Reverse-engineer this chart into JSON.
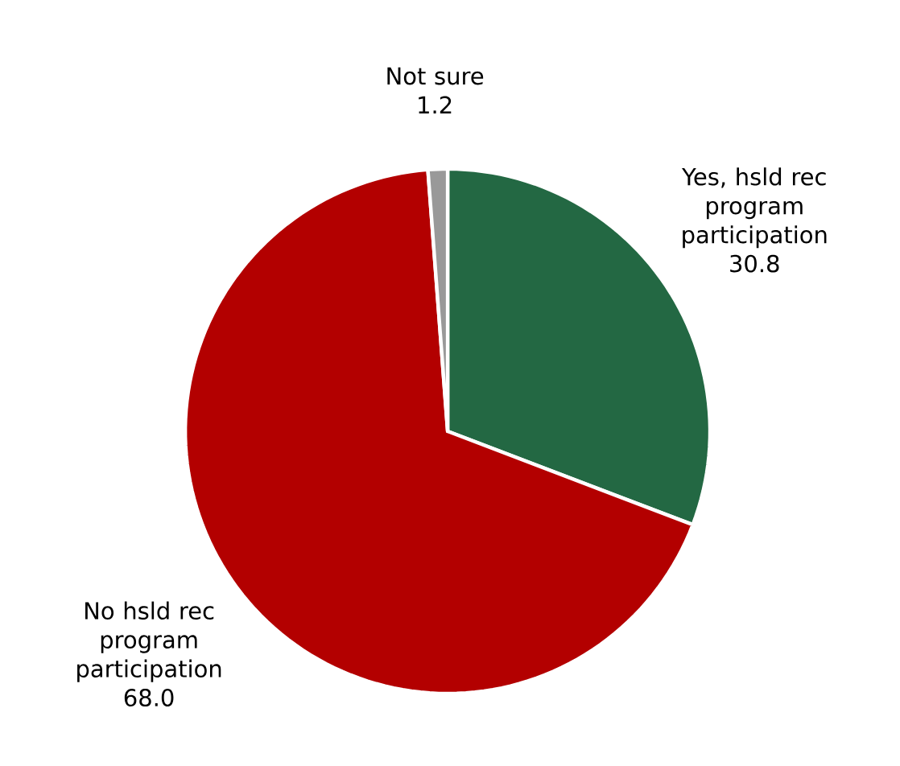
{
  "chart_data": {
    "type": "pie",
    "categories": [
      "Yes, hsld rec program participation",
      "No hsld rec program participation",
      "Not sure"
    ],
    "values": [
      30.8,
      68.0,
      1.2
    ],
    "colors": [
      "#236843",
      "#b30000",
      "#999999"
    ],
    "value_labels": [
      "30.8",
      "68.0",
      "1.2"
    ]
  }
}
